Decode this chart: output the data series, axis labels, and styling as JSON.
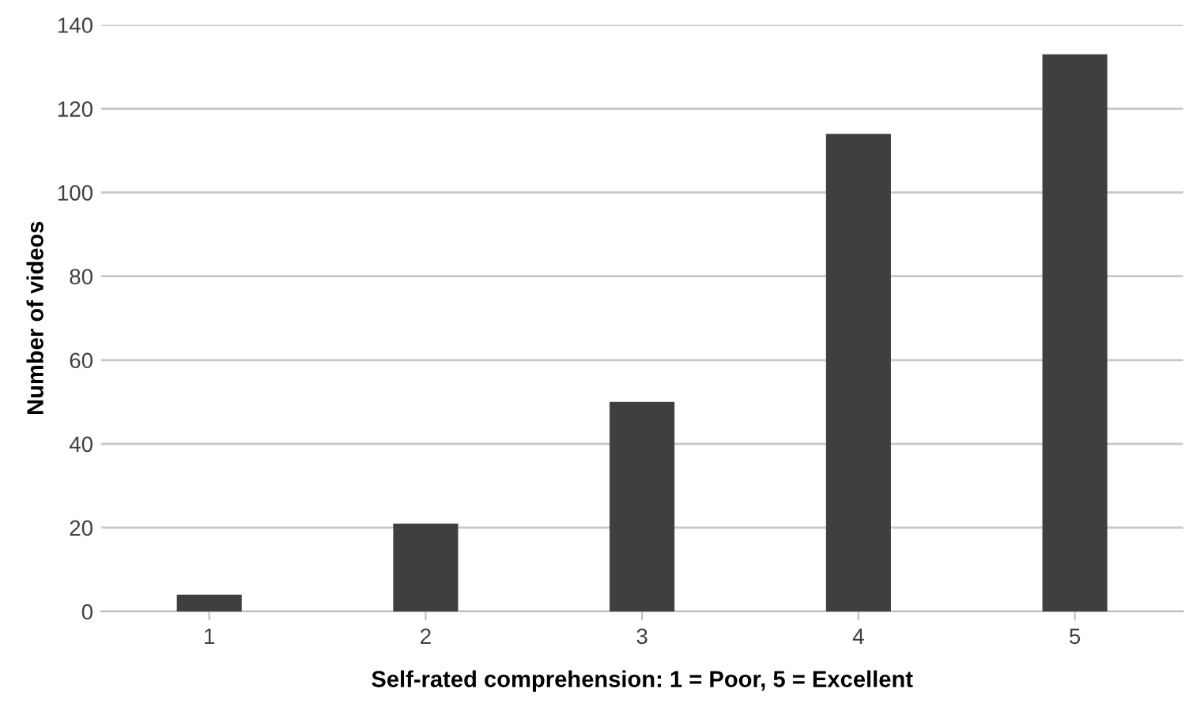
{
  "chart_data": {
    "type": "bar",
    "xlabel": "Self-rated comprehension: 1 = Poor, 5 = Excellent",
    "ylabel": "Number of videos",
    "categories": [
      "1",
      "2",
      "3",
      "4",
      "5"
    ],
    "values": [
      4,
      21,
      50,
      114,
      133
    ],
    "color": "#3f3f3f",
    "ylim": [
      0,
      140
    ],
    "yticks": [
      0,
      20,
      40,
      60,
      80,
      100,
      120,
      140
    ],
    "grid": "y"
  }
}
